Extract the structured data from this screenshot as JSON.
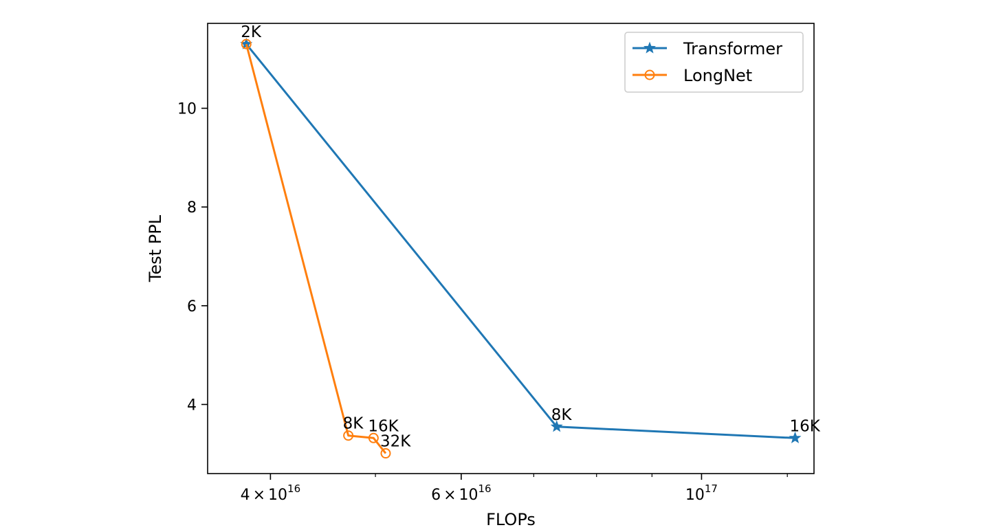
{
  "chart_data": {
    "type": "line",
    "title": "",
    "xlabel": "FLOPs",
    "ylabel": "Test PPL",
    "xscale": "log",
    "xlim": [
      3.5e+16,
      1.27e+17
    ],
    "ylim": [
      2.6,
      11.72
    ],
    "grid": false,
    "legend_position": "top-right",
    "x_ticks": [
      {
        "value": 4e+16,
        "mantissa": "4",
        "times": "×",
        "base": "10",
        "exp": "16"
      },
      {
        "value": 6e+16,
        "mantissa": "6",
        "times": "×",
        "base": "10",
        "exp": "16"
      },
      {
        "value": 1e+17,
        "mantissa": "",
        "times": "",
        "base": "10",
        "exp": "17"
      }
    ],
    "x_minor_ticks": [
      5e+16,
      7e+16,
      8e+16,
      9e+16,
      1.2e+17
    ],
    "y_ticks": [
      {
        "value": 4,
        "label": "4"
      },
      {
        "value": 6,
        "label": "6"
      },
      {
        "value": 8,
        "label": "8"
      },
      {
        "value": 10,
        "label": "10"
      }
    ],
    "series": [
      {
        "name": "Transformer",
        "color": "#1f77b4",
        "marker": "star",
        "points": [
          {
            "x": 3.8e+16,
            "y": 11.3,
            "label": "2K"
          },
          {
            "x": 7.35e+16,
            "y": 3.55,
            "label": "8K"
          },
          {
            "x": 1.22e+17,
            "y": 3.32,
            "label": "16K"
          }
        ]
      },
      {
        "name": "LongNet",
        "color": "#ff7f0e",
        "marker": "circle-open",
        "points": [
          {
            "x": 3.8e+16,
            "y": 11.3,
            "label": "2K"
          },
          {
            "x": 4.72e+16,
            "y": 3.37,
            "label": "8K"
          },
          {
            "x": 4.98e+16,
            "y": 3.32,
            "label": "16K"
          },
          {
            "x": 5.11e+16,
            "y": 3.01,
            "label": "32K"
          }
        ]
      }
    ]
  }
}
